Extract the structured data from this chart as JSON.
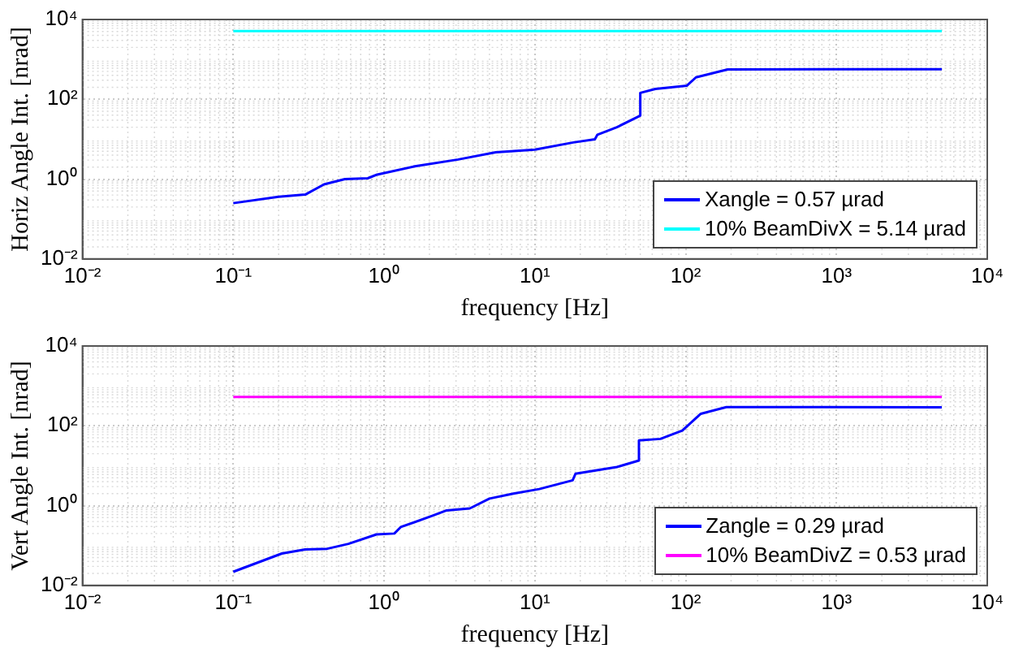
{
  "chart_data": [
    {
      "type": "line",
      "xlabel": "frequency [Hz]",
      "ylabel": "Horiz Angle Int. [nrad]",
      "log": "xy",
      "grid": true,
      "legend": "bottom right",
      "line_style": "solid",
      "xlim": [
        0.01,
        10000
      ],
      "ylim": [
        0.01,
        10000
      ],
      "xticks": [
        {
          "value": 0.01,
          "label": "10⁻²"
        },
        {
          "value": 0.1,
          "label": "10⁻¹"
        },
        {
          "value": 1,
          "label": "10⁰"
        },
        {
          "value": 10,
          "label": "10¹"
        },
        {
          "value": 100,
          "label": "10²"
        },
        {
          "value": 1000,
          "label": "10³"
        },
        {
          "value": 10000,
          "label": "10⁴"
        }
      ],
      "yticks": [
        {
          "value": 0.01,
          "label": "10⁻²"
        },
        {
          "value": 1,
          "label": "10⁰"
        },
        {
          "value": 100,
          "label": "10²"
        },
        {
          "value": 10000,
          "label": "10⁴"
        }
      ],
      "series": [
        {
          "name": "Xangle = 0.57 µrad",
          "color": "#0000ff",
          "x": [
            0.1,
            0.2,
            0.3,
            0.4,
            0.55,
            0.78,
            0.9,
            1.6,
            3.1,
            5.5,
            10,
            18,
            25,
            26,
            35,
            50,
            50,
            63,
            102,
            117,
            174,
            190,
            5000
          ],
          "values": [
            0.25,
            0.36,
            0.41,
            0.74,
            1.0,
            1.05,
            1.3,
            2.1,
            3.1,
            4.7,
            5.5,
            8.3,
            10,
            13,
            20,
            39,
            145,
            182,
            220,
            355,
            515,
            560,
            570
          ]
        },
        {
          "name": "10% BeamDivX = 5.14 µrad",
          "color": "#00ffff",
          "x": [
            0.1,
            5000
          ],
          "values": [
            5140,
            5140
          ]
        }
      ]
    },
    {
      "type": "line",
      "xlabel": "frequency [Hz]",
      "ylabel": "Vert Angle Int. [nrad]",
      "log": "xy",
      "grid": true,
      "legend": "bottom right",
      "line_style": "solid",
      "xlim": [
        0.01,
        10000
      ],
      "ylim": [
        0.01,
        10000
      ],
      "xticks": [
        {
          "value": 0.01,
          "label": "10⁻²"
        },
        {
          "value": 0.1,
          "label": "10⁻¹"
        },
        {
          "value": 1,
          "label": "10⁰"
        },
        {
          "value": 10,
          "label": "10¹"
        },
        {
          "value": 100,
          "label": "10²"
        },
        {
          "value": 1000,
          "label": "10³"
        },
        {
          "value": 10000,
          "label": "10⁴"
        }
      ],
      "yticks": [
        {
          "value": 0.01,
          "label": "10⁻²"
        },
        {
          "value": 1,
          "label": "10⁰"
        },
        {
          "value": 100,
          "label": "10²"
        },
        {
          "value": 10000,
          "label": "10⁴"
        }
      ],
      "series": [
        {
          "name": "Zangle = 0.29 µrad",
          "color": "#0000ff",
          "x": [
            0.1,
            0.21,
            0.3,
            0.42,
            0.58,
            0.89,
            1.17,
            1.29,
            2.1,
            2.6,
            3.7,
            5.0,
            7.2,
            10.7,
            17.8,
            18.6,
            35,
            49,
            49,
            68,
            95,
            126,
            186,
            5000
          ],
          "values": [
            0.022,
            0.063,
            0.08,
            0.083,
            0.11,
            0.19,
            0.2,
            0.29,
            0.56,
            0.76,
            0.85,
            1.5,
            2.0,
            2.6,
            4.3,
            6.3,
            9.3,
            13.5,
            43,
            47,
            76,
            200,
            295,
            290
          ]
        },
        {
          "name": "10% BeamDivZ = 0.53 µrad",
          "color": "#ff00ff",
          "x": [
            0.1,
            5000
          ],
          "values": [
            530,
            530
          ]
        }
      ]
    }
  ]
}
